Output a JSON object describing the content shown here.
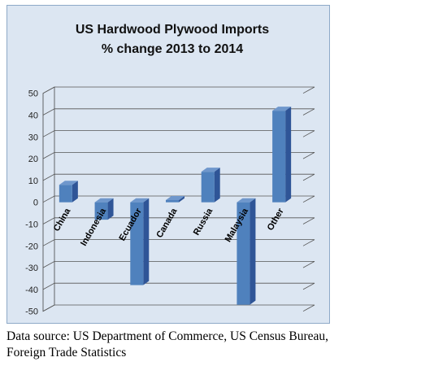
{
  "chart_data": {
    "type": "bar",
    "title": "US Hardwood Plywood Imports",
    "subtitle": "% change 2013 to 2014",
    "categories": [
      "China",
      "Indonesia",
      "Ecuador",
      "Canada",
      "Russia",
      "Malaysia",
      "Other"
    ],
    "values": [
      8,
      -8,
      -38,
      1,
      14,
      -47,
      42
    ],
    "ylim": [
      -50,
      50
    ],
    "yticks": [
      50,
      40,
      30,
      20,
      10,
      0,
      -10,
      -20,
      -30,
      -40,
      -50
    ],
    "ytick_labels": [
      "50",
      "40",
      "30",
      "20",
      "10",
      "0",
      "-10",
      "-20",
      "-30",
      "-40",
      "-50"
    ],
    "xlabel": "",
    "ylabel": "",
    "grid": true,
    "legend": false,
    "bar_color": "#4f81bd",
    "background_color": "#dce6f2"
  },
  "source": {
    "line1": "Data source: US Department of Commerce, US Census Bureau,",
    "line2": "Foreign Trade Statistics"
  }
}
